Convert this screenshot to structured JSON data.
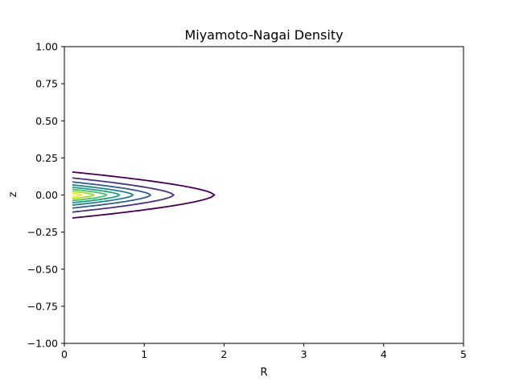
{
  "chart_data": {
    "type": "contour",
    "title": "Miyamoto-Nagai Density",
    "xlabel": "R",
    "ylabel": "z",
    "xlim": [
      0,
      5
    ],
    "ylim": [
      -1.0,
      1.0
    ],
    "xticks": [
      0,
      1,
      2,
      3,
      4,
      5
    ],
    "xtick_labels": [
      "0",
      "1",
      "2",
      "3",
      "4",
      "5"
    ],
    "yticks": [
      1.0,
      0.75,
      0.5,
      0.25,
      0.0,
      -0.25,
      -0.5,
      -0.75,
      -1.0
    ],
    "ytick_labels": [
      "1.00",
      "0.75",
      "0.50",
      "0.25",
      "0.00",
      "−0.25",
      "−0.50",
      "−0.75",
      "−1.00"
    ],
    "grid": false,
    "colormap": "viridis",
    "contours": [
      {
        "color": "#440154",
        "r_start": 0.1,
        "z_half_at_start": 0.155,
        "r_max": 1.88
      },
      {
        "color": "#46337e",
        "r_start": 0.1,
        "z_half_at_start": 0.115,
        "r_max": 1.37
      },
      {
        "color": "#365c8d",
        "r_start": 0.1,
        "z_half_at_start": 0.088,
        "r_max": 1.08
      },
      {
        "color": "#277f8e",
        "r_start": 0.1,
        "z_half_at_start": 0.068,
        "r_max": 0.86
      },
      {
        "color": "#1fa187",
        "r_start": 0.1,
        "z_half_at_start": 0.052,
        "r_max": 0.69
      },
      {
        "color": "#4ac16d",
        "r_start": 0.1,
        "z_half_at_start": 0.038,
        "r_max": 0.53
      },
      {
        "color": "#a0da39",
        "r_start": 0.1,
        "z_half_at_start": 0.025,
        "r_max": 0.37
      },
      {
        "color": "#fde725",
        "r_start": 0.1,
        "z_half_at_start": 0.012,
        "r_max": 0.22
      }
    ]
  }
}
